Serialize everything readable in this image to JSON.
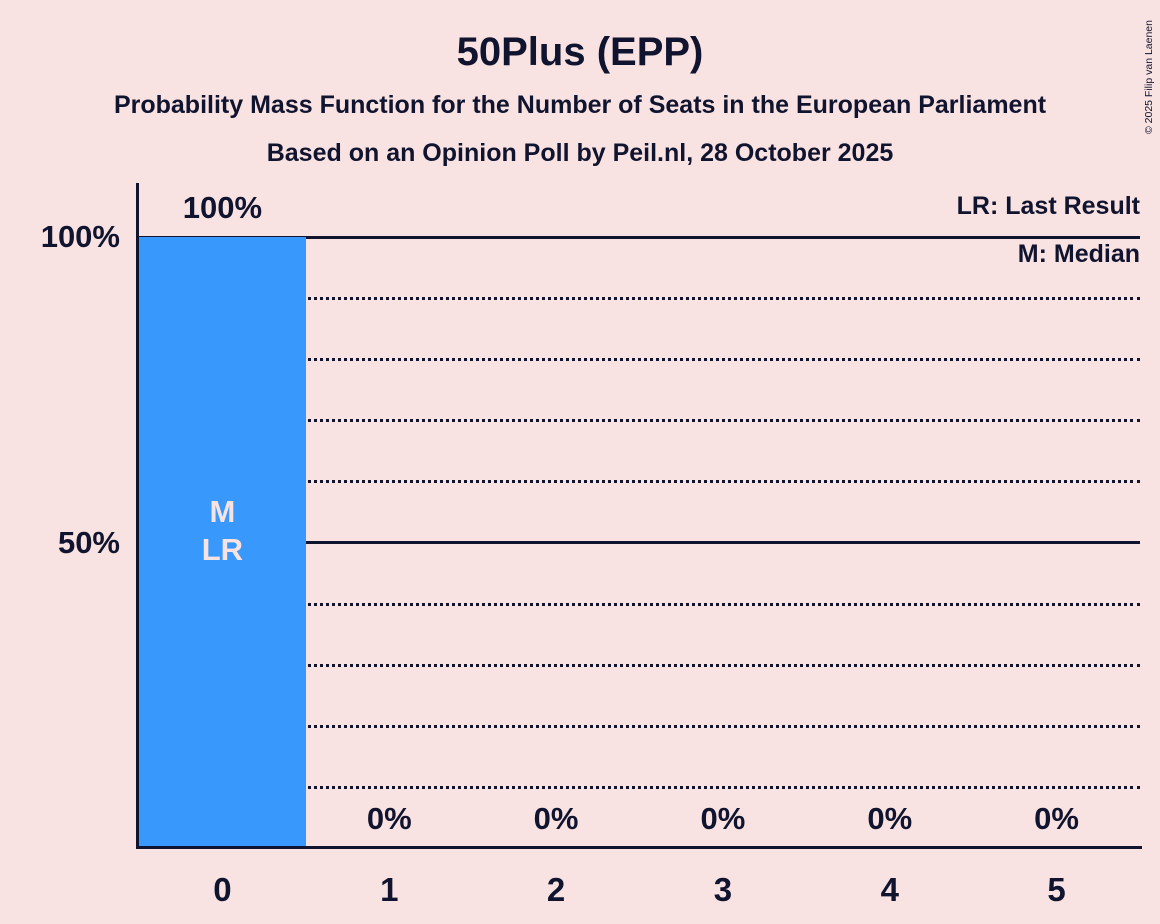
{
  "page": {
    "background_color": "#f9e2e2",
    "text_color": "#10142e",
    "copyright": "© 2025 Filip van Laenen"
  },
  "header": {
    "title": "50Plus (EPP)",
    "subtitle1": "Probability Mass Function for the Number of Seats in the European Parliament",
    "subtitle2": "Based on an Opinion Poll by Peil.nl, 28 October 2025"
  },
  "legend": {
    "items": [
      {
        "label": "LR: Last Result"
      },
      {
        "label": "M: Median"
      }
    ]
  },
  "chart_data": {
    "type": "bar",
    "title": "50Plus (EPP)",
    "categories": [
      "0",
      "1",
      "2",
      "3",
      "4",
      "5"
    ],
    "values": [
      100,
      0,
      0,
      0,
      0,
      0
    ],
    "value_labels": [
      "100%",
      "0%",
      "0%",
      "0%",
      "0%",
      "0%"
    ],
    "xlabel": "",
    "ylabel": "",
    "ylim": [
      0,
      100
    ],
    "y_ticks": [
      {
        "value": 100,
        "label": "100%"
      },
      {
        "value": 50,
        "label": "50%"
      }
    ],
    "solid_gridlines": [
      100,
      50
    ],
    "dotted_gridlines": [
      90,
      80,
      70,
      60,
      40,
      30,
      20,
      10
    ],
    "grid": "horizontal",
    "legend_position": "top-right",
    "bar_color": "#3898fb",
    "bar_label_color": "#f9e2e2",
    "median_bar": "0",
    "last_result_bar": "0",
    "bar_inner_labels": [
      {
        "bar_index": 0,
        "lines": [
          "M",
          "LR"
        ]
      }
    ]
  }
}
